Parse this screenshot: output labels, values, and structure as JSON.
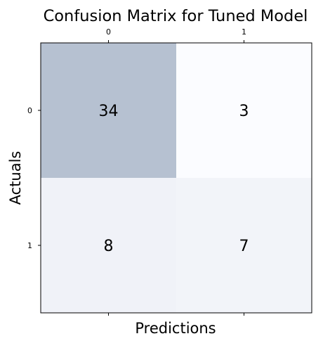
{
  "chart_data": {
    "type": "heatmap",
    "title": "Confusion Matrix for Tuned Model",
    "xlabel": "Predictions",
    "ylabel": "Actuals",
    "x_categories": [
      "0",
      "1"
    ],
    "y_categories": [
      "0",
      "1"
    ],
    "values": [
      [
        34,
        3
      ],
      [
        8,
        7
      ]
    ],
    "x_tick_position": "top",
    "grid": false,
    "colormap": "Blues",
    "alpha": 0.3,
    "colors": {
      "low": "#fbfcff",
      "high": "#b6c1d1",
      "text": "#000000",
      "frame": "#000000"
    }
  }
}
